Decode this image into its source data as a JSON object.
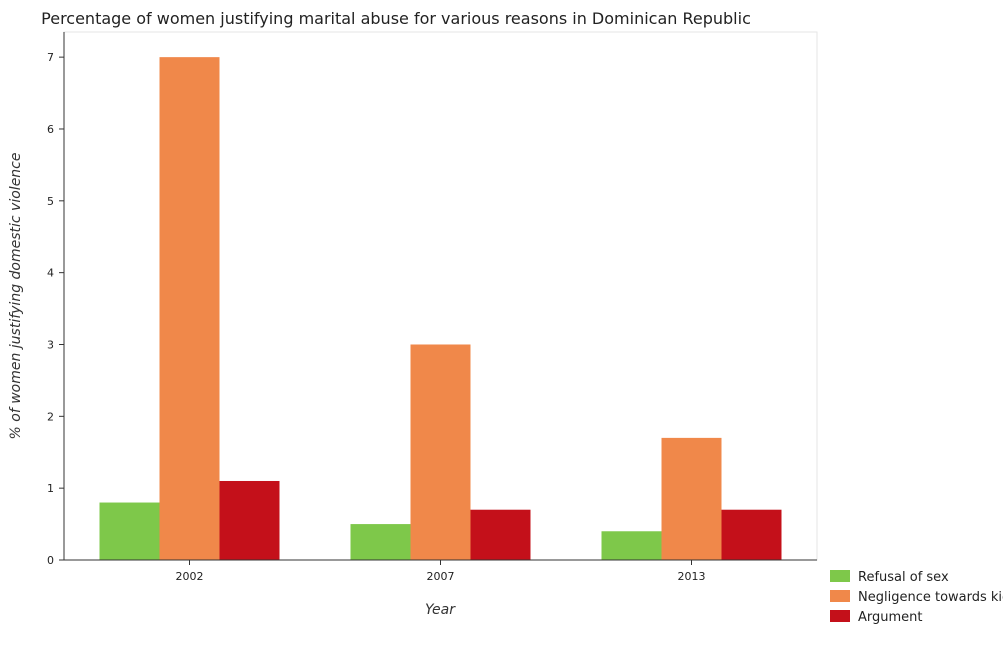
{
  "chart_data": {
    "type": "bar",
    "title": "Percentage of women justifying marital abuse for various reasons in Dominican Republic",
    "xlabel": "Year",
    "ylabel": "% of women justifying domestic violence",
    "categories": [
      "2002",
      "2007",
      "2013"
    ],
    "series": [
      {
        "name": "Refusal of sex",
        "values": [
          0.8,
          0.5,
          0.4
        ],
        "color": "#7ec84a"
      },
      {
        "name": "Negligence towards kids",
        "values": [
          7.0,
          3.0,
          1.7
        ],
        "color": "#f0884a"
      },
      {
        "name": "Argument",
        "values": [
          1.1,
          0.7,
          0.7
        ],
        "color": "#c4101a"
      }
    ],
    "ylim": [
      0,
      7.35
    ],
    "yticks": [
      "0",
      "1",
      "2",
      "3",
      "4",
      "5",
      "6",
      "7"
    ],
    "grid": false,
    "legend_position": "bottom-right"
  }
}
